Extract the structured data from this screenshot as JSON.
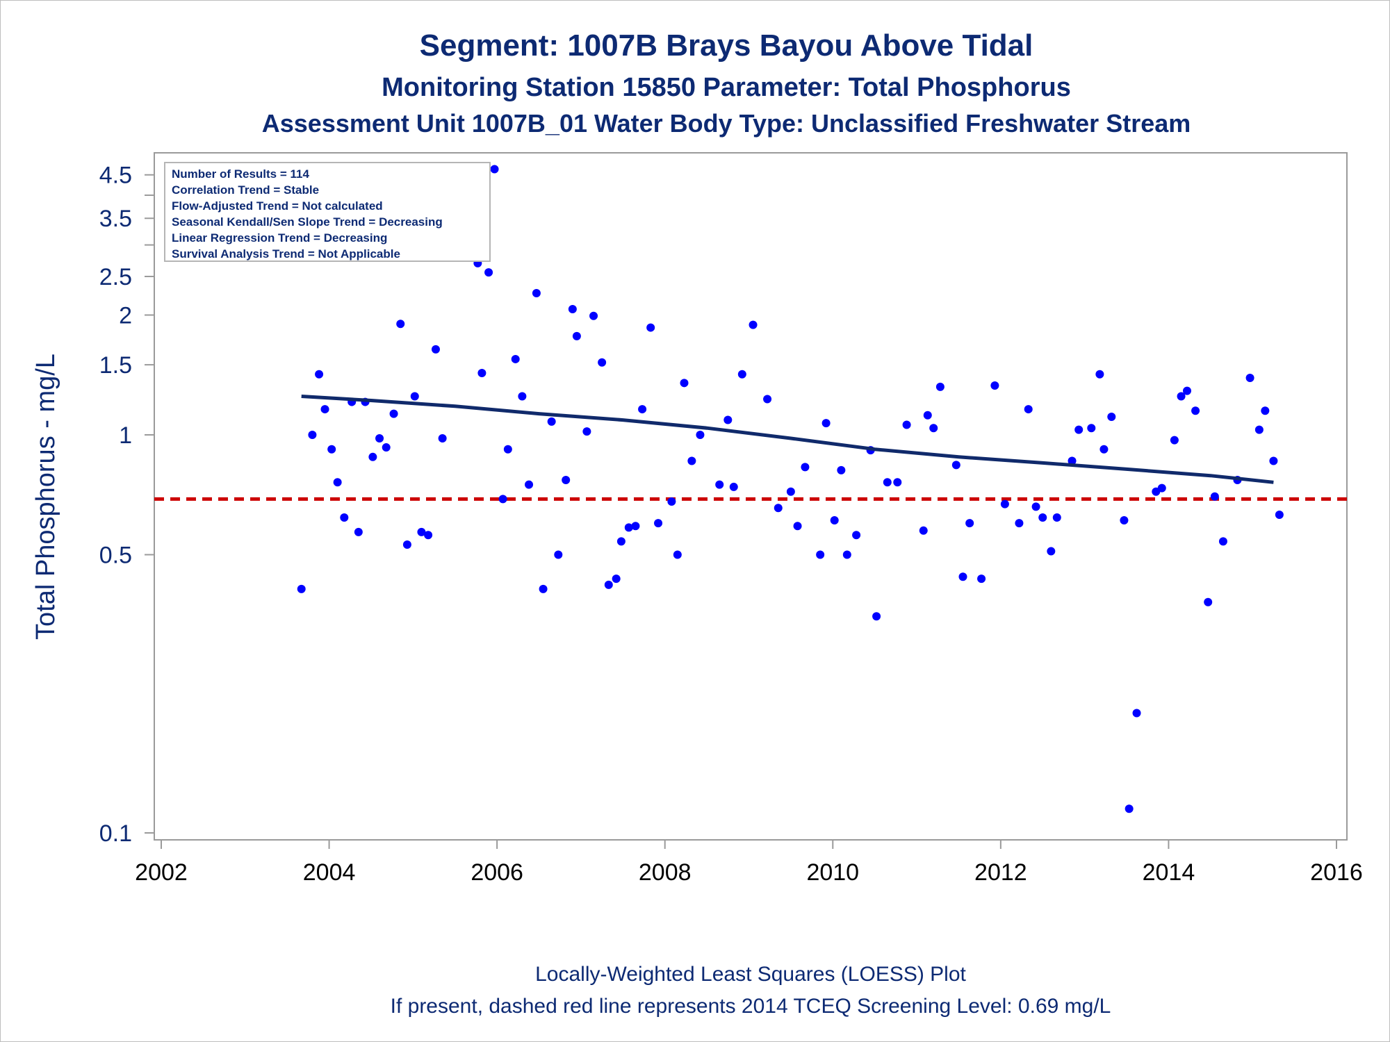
{
  "titles": {
    "line1": "Segment: 1007B  Brays Bayou Above Tidal",
    "line2": "Monitoring Station 15850 Parameter: Total Phosphorus",
    "line3": "Assessment Unit 1007B_01   Water Body Type: Unclassified Freshwater Stream"
  },
  "footnotes": {
    "line1": "Locally-Weighted Least Squares (LOESS) Plot",
    "line2": "If present, dashed red line represents 2014 TCEQ Screening Level: 0.69 mg/L"
  },
  "inset": [
    "Number of Results = 114",
    "Correlation Trend = Stable",
    "Flow-Adjusted Trend = Not calculated",
    "Seasonal Kendall/Sen Slope Trend = Decreasing",
    "Linear Regression Trend = Decreasing",
    "Survival Analysis Trend = Not Applicable"
  ],
  "colors": {
    "text": "#0d2a73",
    "points": "#0000ff",
    "trend_line": "#102a6b",
    "screening_line": "#cc0000",
    "axis": "#9a9a9a"
  },
  "chart_data": {
    "type": "scatter",
    "xlabel": "",
    "ylabel": "Total Phosphorus - mg/L",
    "xlim": [
      2002,
      2016
    ],
    "ylim": [
      0.1,
      4.8
    ],
    "y_scale": "log",
    "x_ticks": [
      2002,
      2004,
      2006,
      2008,
      2010,
      2012,
      2014,
      2016
    ],
    "y_ticks": [
      {
        "value": 0.1,
        "label": "0.1"
      },
      {
        "value": 0.5,
        "label": "0.5"
      },
      {
        "value": 1,
        "label": "1"
      },
      {
        "value": 1.5,
        "label": "1.5"
      },
      {
        "value": 2,
        "label": "2"
      },
      {
        "value": 2.5,
        "label": "2.5"
      },
      {
        "value": 3,
        "label": ""
      },
      {
        "value": 3.5,
        "label": "3.5"
      },
      {
        "value": 4,
        "label": ""
      },
      {
        "value": 4.5,
        "label": "4.5"
      }
    ],
    "grid": false,
    "legend": "none",
    "screening_level": 0.69,
    "points": [
      [
        2003.67,
        0.41
      ],
      [
        2003.8,
        1.0
      ],
      [
        2003.88,
        1.42
      ],
      [
        2003.95,
        1.16
      ],
      [
        2004.03,
        0.92
      ],
      [
        2004.1,
        0.76
      ],
      [
        2004.18,
        0.62
      ],
      [
        2004.27,
        1.21
      ],
      [
        2004.35,
        0.57
      ],
      [
        2004.43,
        1.21
      ],
      [
        2004.52,
        0.88
      ],
      [
        2004.6,
        0.98
      ],
      [
        2004.68,
        0.93
      ],
      [
        2004.77,
        1.13
      ],
      [
        2004.85,
        1.9
      ],
      [
        2004.93,
        0.53
      ],
      [
        2005.02,
        1.25
      ],
      [
        2005.1,
        0.57
      ],
      [
        2005.18,
        0.56
      ],
      [
        2005.27,
        1.64
      ],
      [
        2005.35,
        0.98
      ],
      [
        2005.77,
        2.7
      ],
      [
        2005.82,
        1.43
      ],
      [
        2005.9,
        2.56
      ],
      [
        2005.97,
        4.65
      ],
      [
        2006.07,
        0.69
      ],
      [
        2006.13,
        0.92
      ],
      [
        2006.22,
        1.55
      ],
      [
        2006.3,
        1.25
      ],
      [
        2006.38,
        0.75
      ],
      [
        2006.47,
        2.27
      ],
      [
        2006.55,
        0.41
      ],
      [
        2006.65,
        1.08
      ],
      [
        2006.73,
        0.5
      ],
      [
        2006.82,
        0.77
      ],
      [
        2006.9,
        2.07
      ],
      [
        2006.95,
        1.77
      ],
      [
        2007.07,
        1.02
      ],
      [
        2007.15,
        1.99
      ],
      [
        2007.25,
        1.52
      ],
      [
        2007.33,
        0.42
      ],
      [
        2007.42,
        0.435
      ],
      [
        2007.48,
        0.54
      ],
      [
        2007.57,
        0.585
      ],
      [
        2007.65,
        0.59
      ],
      [
        2007.73,
        1.16
      ],
      [
        2007.83,
        1.86
      ],
      [
        2007.92,
        0.6
      ],
      [
        2008.08,
        0.68
      ],
      [
        2008.15,
        0.5
      ],
      [
        2008.23,
        1.35
      ],
      [
        2008.32,
        0.86
      ],
      [
        2008.42,
        1.0
      ],
      [
        2008.65,
        0.75
      ],
      [
        2008.75,
        1.09
      ],
      [
        2008.82,
        0.74
      ],
      [
        2008.92,
        1.42
      ],
      [
        2009.05,
        1.89
      ],
      [
        2009.22,
        1.23
      ],
      [
        2009.35,
        0.655
      ],
      [
        2009.5,
        0.72
      ],
      [
        2009.58,
        0.59
      ],
      [
        2009.67,
        0.83
      ],
      [
        2009.85,
        0.5
      ],
      [
        2009.92,
        1.07
      ],
      [
        2010.02,
        0.61
      ],
      [
        2010.1,
        0.815
      ],
      [
        2010.17,
        0.5
      ],
      [
        2010.28,
        0.56
      ],
      [
        2010.45,
        0.915
      ],
      [
        2010.52,
        0.35
      ],
      [
        2010.65,
        0.76
      ],
      [
        2010.77,
        0.76
      ],
      [
        2010.88,
        1.06
      ],
      [
        2011.08,
        0.575
      ],
      [
        2011.13,
        1.12
      ],
      [
        2011.2,
        1.04
      ],
      [
        2011.28,
        1.32
      ],
      [
        2011.47,
        0.84
      ],
      [
        2011.55,
        0.44
      ],
      [
        2011.63,
        0.6
      ],
      [
        2011.77,
        0.435
      ],
      [
        2011.93,
        1.33
      ],
      [
        2012.05,
        0.67
      ],
      [
        2012.22,
        0.6
      ],
      [
        2012.33,
        1.16
      ],
      [
        2012.42,
        0.66
      ],
      [
        2012.5,
        0.62
      ],
      [
        2012.6,
        0.51
      ],
      [
        2012.67,
        0.62
      ],
      [
        2012.85,
        0.86
      ],
      [
        2012.93,
        1.03
      ],
      [
        2013.08,
        1.04
      ],
      [
        2013.18,
        1.42
      ],
      [
        2013.23,
        0.92
      ],
      [
        2013.32,
        1.11
      ],
      [
        2013.47,
        0.61
      ],
      [
        2013.53,
        0.115
      ],
      [
        2013.62,
        0.2
      ],
      [
        2013.85,
        0.72
      ],
      [
        2013.92,
        0.735
      ],
      [
        2014.07,
        0.97
      ],
      [
        2014.15,
        1.25
      ],
      [
        2014.22,
        1.29
      ],
      [
        2014.32,
        1.15
      ],
      [
        2014.47,
        0.38
      ],
      [
        2014.55,
        0.7
      ],
      [
        2014.65,
        0.54
      ],
      [
        2014.82,
        0.77
      ],
      [
        2014.97,
        1.39
      ],
      [
        2015.08,
        1.03
      ],
      [
        2015.15,
        1.15
      ],
      [
        2015.25,
        0.86
      ],
      [
        2015.32,
        0.63
      ]
    ],
    "loess": [
      [
        2003.67,
        1.25
      ],
      [
        2004.5,
        1.22
      ],
      [
        2005.5,
        1.18
      ],
      [
        2006.5,
        1.13
      ],
      [
        2007.5,
        1.09
      ],
      [
        2008.5,
        1.04
      ],
      [
        2009.5,
        0.98
      ],
      [
        2010.5,
        0.92
      ],
      [
        2011.5,
        0.88
      ],
      [
        2012.5,
        0.85
      ],
      [
        2013.5,
        0.82
      ],
      [
        2014.5,
        0.79
      ],
      [
        2015.25,
        0.76
      ]
    ]
  }
}
